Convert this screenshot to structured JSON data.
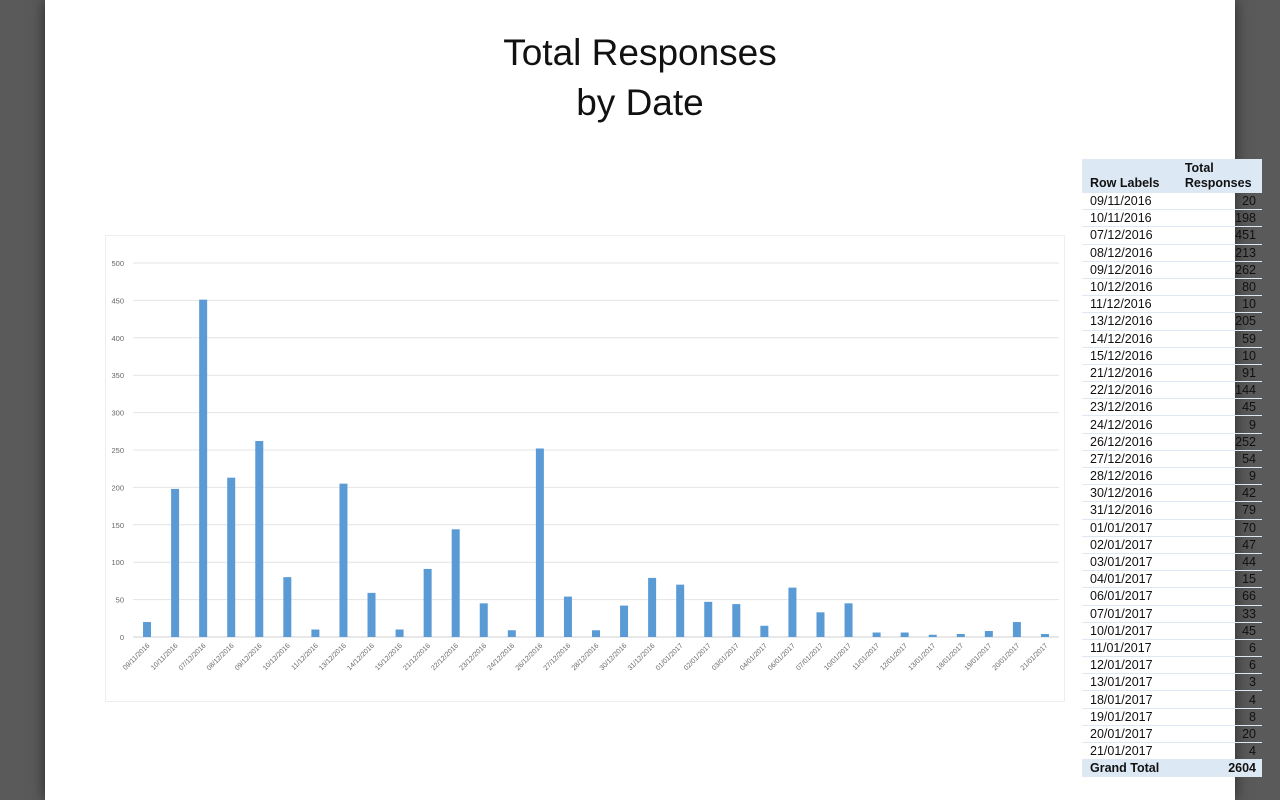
{
  "title": {
    "line1": "Total Responses",
    "line2": "by Date"
  },
  "pivot": {
    "col_labels": "Row Labels",
    "col_total_line1": "Total",
    "col_total_line2": "Responses",
    "grand_total_label": "Grand Total",
    "grand_total_value": "2604",
    "rows": [
      {
        "label": "09/11/2016",
        "value": "20"
      },
      {
        "label": "10/11/2016",
        "value": "198"
      },
      {
        "label": "07/12/2016",
        "value": "451"
      },
      {
        "label": "08/12/2016",
        "value": "213"
      },
      {
        "label": "09/12/2016",
        "value": "262"
      },
      {
        "label": "10/12/2016",
        "value": "80"
      },
      {
        "label": "11/12/2016",
        "value": "10"
      },
      {
        "label": "13/12/2016",
        "value": "205"
      },
      {
        "label": "14/12/2016",
        "value": "59"
      },
      {
        "label": "15/12/2016",
        "value": "10"
      },
      {
        "label": "21/12/2016",
        "value": "91"
      },
      {
        "label": "22/12/2016",
        "value": "144"
      },
      {
        "label": "23/12/2016",
        "value": "45"
      },
      {
        "label": "24/12/2016",
        "value": "9"
      },
      {
        "label": "26/12/2016",
        "value": "252"
      },
      {
        "label": "27/12/2016",
        "value": "54"
      },
      {
        "label": "28/12/2016",
        "value": "9"
      },
      {
        "label": "30/12/2016",
        "value": "42"
      },
      {
        "label": "31/12/2016",
        "value": "79"
      },
      {
        "label": "01/01/2017",
        "value": "70"
      },
      {
        "label": "02/01/2017",
        "value": "47"
      },
      {
        "label": "03/01/2017",
        "value": "44"
      },
      {
        "label": "04/01/2017",
        "value": "15"
      },
      {
        "label": "06/01/2017",
        "value": "66"
      },
      {
        "label": "07/01/2017",
        "value": "33"
      },
      {
        "label": "10/01/2017",
        "value": "45"
      },
      {
        "label": "11/01/2017",
        "value": "6"
      },
      {
        "label": "12/01/2017",
        "value": "6"
      },
      {
        "label": "13/01/2017",
        "value": "3"
      },
      {
        "label": "18/01/2017",
        "value": "4"
      },
      {
        "label": "19/01/2017",
        "value": "8"
      },
      {
        "label": "20/01/2017",
        "value": "20"
      },
      {
        "label": "21/01/2017",
        "value": "4"
      }
    ]
  },
  "chart_data": {
    "type": "bar",
    "title": "",
    "xlabel": "",
    "ylabel": "",
    "ylim": [
      0,
      500
    ],
    "yticks": [
      0,
      50,
      100,
      150,
      200,
      250,
      300,
      350,
      400,
      450,
      500
    ],
    "grid": true,
    "legend": "none",
    "bar_color": "#5b9bd5",
    "categories": [
      "09/11/2016",
      "10/11/2016",
      "07/12/2016",
      "08/12/2016",
      "09/12/2016",
      "10/12/2016",
      "11/12/2016",
      "13/12/2016",
      "14/12/2016",
      "15/12/2016",
      "21/12/2016",
      "22/12/2016",
      "23/12/2016",
      "24/12/2016",
      "26/12/2016",
      "27/12/2016",
      "28/12/2016",
      "30/12/2016",
      "31/12/2016",
      "01/01/2017",
      "02/01/2017",
      "03/01/2017",
      "04/01/2017",
      "06/01/2017",
      "07/01/2017",
      "10/01/2017",
      "11/01/2017",
      "12/01/2017",
      "13/01/2017",
      "18/01/2017",
      "19/01/2017",
      "20/01/2017",
      "21/01/2017"
    ],
    "values": [
      20,
      198,
      451,
      213,
      262,
      80,
      10,
      205,
      59,
      10,
      91,
      144,
      45,
      9,
      252,
      54,
      9,
      42,
      79,
      70,
      47,
      44,
      15,
      66,
      33,
      45,
      6,
      6,
      3,
      4,
      8,
      20,
      4
    ]
  }
}
